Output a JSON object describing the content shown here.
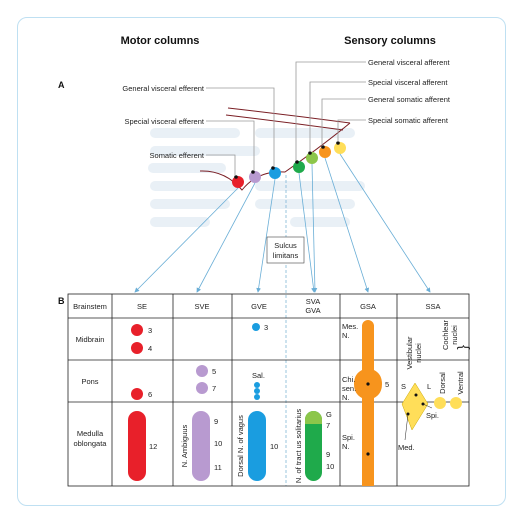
{
  "headers": {
    "motor": "Motor columns",
    "sensory": "Sensory columns"
  },
  "panel_a": {
    "letter": "A",
    "labels": {
      "gve": "General visceral efferent",
      "sve": "Special visceral efferent",
      "se": "Somatic efferent",
      "gva": "General visceral afferent",
      "sva": "Special visceral afferent",
      "gsa": "General somatic afferent",
      "ssa": "Special somatic afferent"
    },
    "sulcus_line1": "Sulcus",
    "sulcus_line2": "limitans",
    "colors": {
      "se": "#e8202a",
      "sve": "#b89ad0",
      "gve": "#1a9de0",
      "gva": "#1faa4b",
      "sva": "#8cc64a",
      "gsa": "#f7941d",
      "ssa": "#ffde59"
    }
  },
  "panel_b": {
    "letter": "B",
    "columns": [
      "Brainstem",
      "SE",
      "SVE",
      "GVE",
      "SVA\nGVA",
      "GSA",
      "SSA"
    ],
    "col_sva": "SVA",
    "col_gva": "GVA",
    "rows": {
      "midbrain": "Midbrain",
      "pons": "Pons",
      "medulla1": "Medulla",
      "medulla2": "oblongata"
    },
    "se": {
      "n3": "3",
      "n4": "4",
      "n6": "6",
      "n12": "12"
    },
    "sve": {
      "n5": "5",
      "n7": "7",
      "n9": "9",
      "n10": "10",
      "n11": "11",
      "nucleus": "N. Ambiguus"
    },
    "gve": {
      "n3": "3",
      "sal": "Sal.",
      "n10": "10",
      "nucleus": "Dorsal N. of vagus"
    },
    "sva": {
      "g": "G",
      "n7": "7",
      "n9": "9",
      "n10": "10",
      "nucleus": "N. of tract us solitarius"
    },
    "gsa": {
      "mes1": "Mes.",
      "mes2": "N.",
      "chi1": "Chi.",
      "chi2": "sen.",
      "chi3": "N.",
      "n5": "5",
      "spi1": "Spi.",
      "spi2": "N."
    },
    "ssa": {
      "vestibular1": "Vestibular",
      "vestibular2": "nuclei",
      "cochlear1": "Cochlear",
      "cochlear2": "nuclei",
      "dorsal": "Dorsal",
      "ventral": "Ventral",
      "s": "S",
      "l": "L",
      "spi": "Spi.",
      "med": "Med."
    }
  }
}
